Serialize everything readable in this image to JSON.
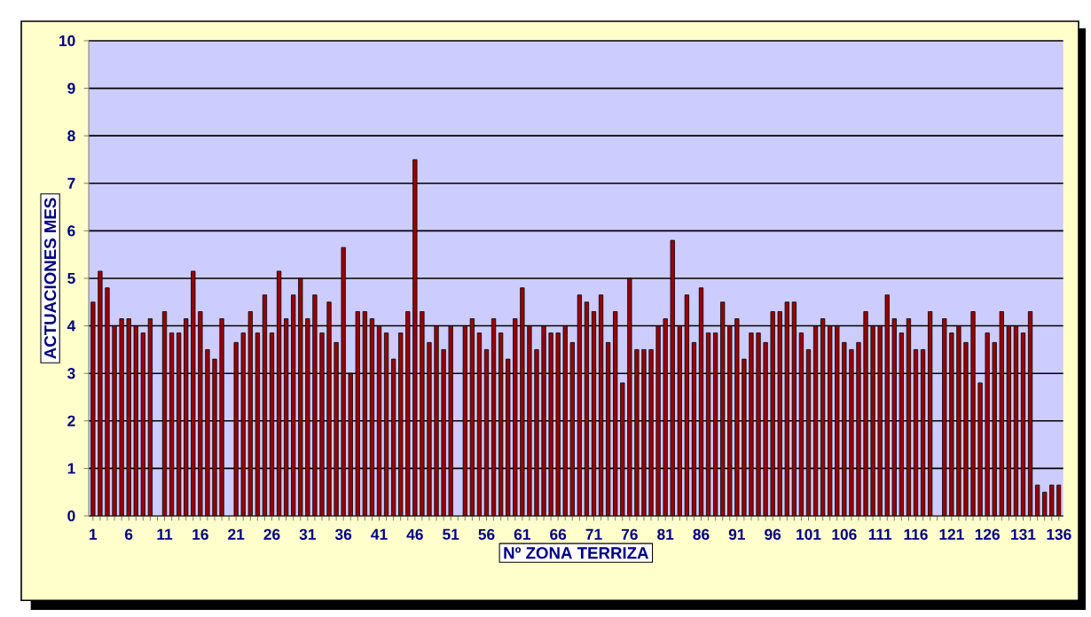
{
  "chart_data": {
    "type": "bar",
    "xlabel": "Nº ZONA TERRIZA",
    "ylabel": "ACTUACIONES MES",
    "categories": [
      "1",
      null,
      null,
      null,
      null,
      "6",
      null,
      null,
      null,
      null,
      "11",
      null,
      null,
      null,
      null,
      "16",
      null,
      null,
      null,
      null,
      "21",
      null,
      null,
      null,
      null,
      "26",
      null,
      null,
      null,
      null,
      "31",
      null,
      null,
      null,
      null,
      "36",
      null,
      null,
      null,
      null,
      "41",
      null,
      null,
      null,
      null,
      "46",
      null,
      null,
      null,
      null,
      "51",
      null,
      null,
      null,
      null,
      "56",
      null,
      null,
      null,
      null,
      "61",
      null,
      null,
      null,
      null,
      "66",
      null,
      null,
      null,
      null,
      "71",
      null,
      null,
      null,
      null,
      "76",
      null,
      null,
      null,
      null,
      "81",
      null,
      null,
      null,
      null,
      "86",
      null,
      null,
      null,
      null,
      "91",
      null,
      null,
      null,
      null,
      "96",
      null,
      null,
      null,
      null,
      "101",
      null,
      null,
      null,
      null,
      "106",
      null,
      null,
      null,
      null,
      "111",
      null,
      null,
      null,
      null,
      "116",
      null,
      null,
      null,
      null,
      "121",
      null,
      null,
      null,
      null,
      "126",
      null,
      null,
      null,
      null,
      "131",
      null,
      null,
      null,
      null,
      "136"
    ],
    "values": [
      4.5,
      5.15,
      4.8,
      4.0,
      4.15,
      4.15,
      4.0,
      3.85,
      4.15,
      null,
      4.3,
      3.85,
      3.85,
      4.15,
      5.15,
      4.3,
      3.5,
      3.3,
      4.15,
      null,
      3.65,
      3.85,
      4.3,
      3.85,
      4.65,
      3.85,
      5.15,
      4.15,
      4.65,
      5.0,
      4.15,
      4.65,
      3.85,
      4.5,
      3.65,
      5.65,
      3.0,
      4.3,
      4.3,
      4.15,
      4.0,
      3.85,
      3.3,
      3.85,
      4.3,
      7.5,
      4.3,
      3.65,
      4.0,
      3.5,
      4.0,
      null,
      4.0,
      4.15,
      3.85,
      3.5,
      4.15,
      3.85,
      3.3,
      4.15,
      4.8,
      4.0,
      3.5,
      4.0,
      3.85,
      3.85,
      4.0,
      3.65,
      4.65,
      4.5,
      4.3,
      4.65,
      3.65,
      4.3,
      2.8,
      5.0,
      3.5,
      3.5,
      3.5,
      4.0,
      4.15,
      5.8,
      4.0,
      4.65,
      3.65,
      4.8,
      3.85,
      3.85,
      4.5,
      4.0,
      4.15,
      3.3,
      3.85,
      3.85,
      3.65,
      4.3,
      4.3,
      4.5,
      4.5,
      3.85,
      3.5,
      4.0,
      4.15,
      4.0,
      4.0,
      3.65,
      3.5,
      3.65,
      4.3,
      4.0,
      4.0,
      4.65,
      4.15,
      3.85,
      4.15,
      3.5,
      3.5,
      4.3,
      null,
      4.15,
      3.85,
      4.0,
      3.65,
      4.3,
      2.8,
      3.85,
      3.65,
      4.3,
      4.0,
      4.0,
      3.85,
      4.3,
      0.65,
      0.5,
      0.65,
      0.65
    ],
    "color": "#990000",
    "ylim": [
      0,
      10
    ],
    "yticks": [
      0,
      1,
      2,
      3,
      4,
      5,
      6,
      7,
      8,
      9,
      10
    ],
    "grid": "y"
  }
}
